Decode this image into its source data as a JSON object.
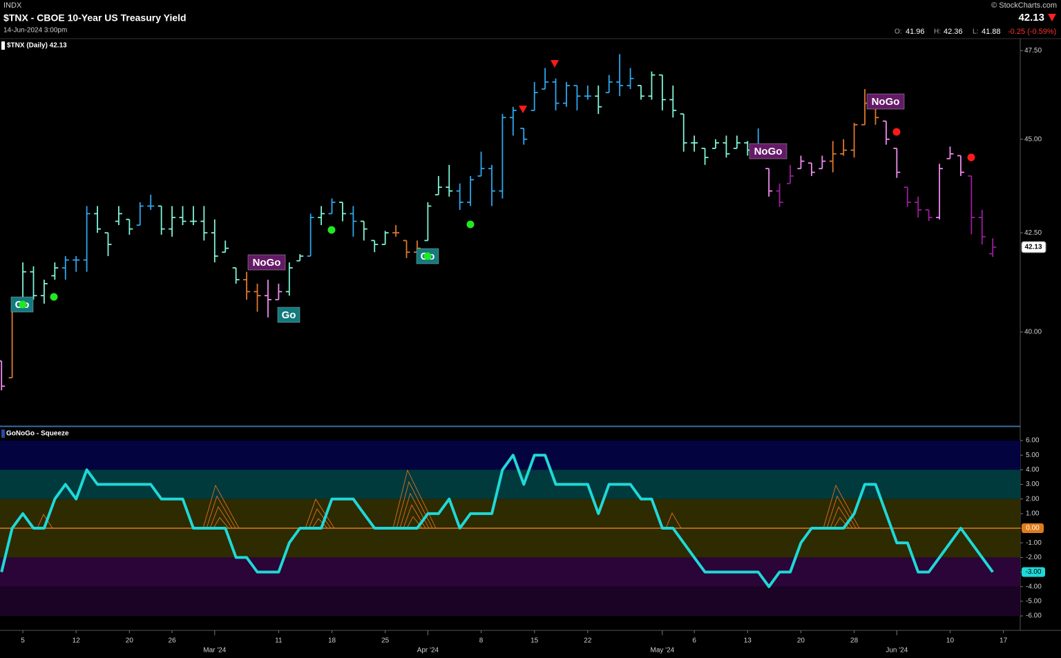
{
  "header": {
    "exchange": "INDX",
    "title": "$TNX - CBOE 10-Year US Treasury Yield",
    "date": "14-Jun-2024 3:00pm",
    "source": "© StockCharts.com",
    "last": 42.13,
    "quote": [
      {
        "label": "O:",
        "value": 41.96
      },
      {
        "label": "H:",
        "value": 42.36
      },
      {
        "label": "L:",
        "value": 41.88
      }
    ],
    "change": "-0.25 (-0.59%)"
  },
  "chart_data": [
    {
      "type": "ohlc",
      "name": "$TNX (Daily) 42.13",
      "log_scale": true,
      "ylim": [
        37.77,
        47.83
      ],
      "yticks": [
        {
          "value": 40,
          "label": "40.00"
        },
        {
          "value": 42.5,
          "label": "42.50"
        },
        {
          "value": 45,
          "label": "45.00"
        },
        {
          "value": 47.5,
          "label": "47.50"
        }
      ],
      "categories": [
        null,
        null,
        "5",
        null,
        null,
        null,
        null,
        "12",
        null,
        null,
        null,
        null,
        "20",
        null,
        null,
        null,
        "26",
        null,
        null,
        null,
        "Mar '24",
        null,
        null,
        null,
        null,
        null,
        "11",
        null,
        null,
        null,
        null,
        "18",
        null,
        null,
        null,
        null,
        "25",
        null,
        null,
        null,
        "Apr '24",
        null,
        null,
        null,
        null,
        "8",
        null,
        null,
        null,
        null,
        "15",
        null,
        null,
        null,
        null,
        "22",
        null,
        null,
        null,
        null,
        null,
        null,
        "May '24",
        null,
        null,
        "6",
        null,
        null,
        null,
        null,
        "13",
        null,
        null,
        null,
        null,
        "20",
        null,
        null,
        null,
        null,
        "28",
        null,
        null,
        null,
        "Jun '24",
        null,
        null,
        null,
        null,
        "10",
        null,
        null,
        null,
        null,
        "17"
      ],
      "open": [
        39.3,
        38.9,
        40.8,
        41.5,
        40.9,
        41.4,
        41.6,
        41.8,
        41.8,
        43.0,
        42.5,
        42.8,
        42.85,
        42.7,
        43.2,
        43.2,
        42.6,
        42.9,
        42.8,
        42.8,
        42.5,
        42.0,
        41.6,
        41.3,
        41.0,
        40.9,
        40.8,
        41.0,
        41.78,
        41.9,
        42.9,
        43.0,
        43.3,
        43.0,
        42.8,
        42.3,
        42.2,
        42.5,
        42.3,
        42.0,
        42.3,
        43.5,
        43.7,
        43.6,
        43.3,
        44.0,
        44.2,
        43.6,
        45.6,
        45.3,
        45.8,
        46.4,
        46.6,
        46.0,
        46.5,
        46.2,
        46.2,
        46.3,
        46.6,
        46.5,
        46.5,
        46.2,
        46.8,
        46.1,
        45.7,
        44.9,
        44.75,
        44.75,
        44.9,
        44.75,
        44.9,
        44.7,
        44.2,
        43.6,
        43.8,
        44.2,
        44.35,
        44.2,
        44.4,
        44.6,
        44.7,
        45.4,
        46.0,
        45.5,
        44.75,
        43.7,
        43.3,
        43.1,
        42.9,
        44.47,
        44.55,
        44.0,
        42.9,
        41.96,
        null
      ],
      "high": [
        39.3,
        40.7,
        41.74,
        41.64,
        41.3,
        41.74,
        41.9,
        41.9,
        43.2,
        43.2,
        42.5,
        43.2,
        42.85,
        43.3,
        43.5,
        43.2,
        43.2,
        43.2,
        43.2,
        43.2,
        42.85,
        42.3,
        41.6,
        41.5,
        41.2,
        41.3,
        41.2,
        41.74,
        41.95,
        43.0,
        43.2,
        43.4,
        43.3,
        43.2,
        42.8,
        42.3,
        42.55,
        42.7,
        42.3,
        42.3,
        43.3,
        44.0,
        44.3,
        43.8,
        44.0,
        44.66,
        44.3,
        45.7,
        45.9,
        45.3,
        46.6,
        47.0,
        46.7,
        46.6,
        46.5,
        46.5,
        46.5,
        46.8,
        47.4,
        47.0,
        46.5,
        46.9,
        46.8,
        46.5,
        45.7,
        45.1,
        44.75,
        45.0,
        45.1,
        45.1,
        44.95,
        45.3,
        44.2,
        43.8,
        44.3,
        44.55,
        44.35,
        44.55,
        44.95,
        45.0,
        45.45,
        46.4,
        46.0,
        45.5,
        44.75,
        43.7,
        43.45,
        43.1,
        44.33,
        44.8,
        44.55,
        44.0,
        43.1,
        42.36,
        null
      ],
      "low": [
        38.6,
        38.9,
        40.7,
        40.8,
        40.7,
        41.3,
        41.3,
        41.5,
        41.5,
        42.5,
        41.9,
        42.7,
        42.45,
        42.7,
        43.1,
        42.45,
        42.4,
        42.7,
        42.7,
        42.3,
        41.74,
        42.0,
        41.2,
        40.8,
        40.5,
        40.36,
        40.8,
        40.9,
        41.78,
        41.9,
        42.7,
        43.0,
        42.8,
        42.4,
        42.3,
        42.0,
        42.2,
        42.4,
        41.85,
        41.9,
        42.3,
        43.5,
        43.45,
        43.1,
        43.2,
        44.0,
        43.2,
        43.4,
        45.1,
        44.85,
        45.8,
        46.4,
        45.8,
        45.9,
        45.8,
        46.1,
        45.7,
        46.3,
        46.2,
        46.4,
        46.1,
        46.1,
        45.8,
        45.6,
        44.66,
        44.66,
        44.3,
        44.75,
        44.5,
        44.75,
        44.55,
        44.5,
        43.45,
        43.18,
        43.8,
        44.2,
        44.0,
        44.2,
        44.1,
        44.55,
        44.5,
        45.4,
        45.4,
        44.85,
        43.95,
        43.18,
        42.9,
        42.81,
        42.85,
        44.47,
        44.0,
        42.46,
        42.2,
        41.88,
        null
      ],
      "close": [
        38.7,
        40.6,
        41.5,
        40.9,
        41.2,
        41.6,
        41.8,
        41.8,
        43.0,
        42.6,
        42.2,
        43.0,
        42.6,
        43.2,
        43.2,
        42.6,
        42.9,
        42.8,
        42.8,
        42.5,
        41.9,
        42.1,
        41.3,
        41.0,
        40.9,
        40.8,
        41.0,
        41.6,
        41.9,
        42.9,
        43.0,
        43.3,
        43.0,
        42.8,
        42.6,
        42.2,
        42.5,
        42.5,
        42.0,
        42.1,
        43.2,
        43.7,
        43.6,
        43.3,
        43.9,
        44.2,
        43.6,
        45.6,
        45.8,
        45.0,
        46.3,
        46.6,
        46.0,
        46.5,
        46.2,
        46.2,
        45.9,
        46.6,
        46.5,
        46.7,
        46.2,
        46.8,
        46.1,
        45.8,
        44.9,
        44.9,
        44.5,
        44.9,
        44.6,
        44.9,
        44.7,
        44.6,
        43.6,
        43.3,
        44.0,
        44.4,
        44.1,
        44.4,
        44.6,
        44.7,
        45.4,
        46.0,
        45.6,
        45.0,
        44.1,
        43.3,
        43.1,
        42.9,
        44.2,
        44.6,
        44.1,
        42.9,
        42.4,
        42.13,
        null
      ],
      "colors": [
        "#f08cf0",
        "#e0782c",
        "#7ff5d8",
        "#7ff5d8",
        "#7ff5d8",
        "#7ff5d8",
        "#2ea8f0",
        "#2ea8f0",
        "#2ea8f0",
        "#7ff5d8",
        "#7ff5d8",
        "#7ff5d8",
        "#7ff5d8",
        "#2ea8f0",
        "#2ea8f0",
        "#7ff5d8",
        "#7ff5d8",
        "#7ff5d8",
        "#7ff5d8",
        "#7ff5d8",
        "#7ff5d8",
        "#7ff5d8",
        "#7ff5d8",
        "#e0782c",
        "#e0782c",
        "#f08cf0",
        "#f08cf0",
        "#7ff5d8",
        "#7ff5d8",
        "#2ea8f0",
        "#7ff5d8",
        "#2ea8f0",
        "#7ff5d8",
        "#2ea8f0",
        "#7ff5d8",
        "#7ff5d8",
        "#7ff5d8",
        "#e0782c",
        "#e0782c",
        "#e0782c",
        "#7ff5d8",
        "#7ff5d8",
        "#7ff5d8",
        "#2ea8f0",
        "#2ea8f0",
        "#2ea8f0",
        "#2ea8f0",
        "#2ea8f0",
        "#2ea8f0",
        "#2ea8f0",
        "#2ea8f0",
        "#2ea8f0",
        "#2ea8f0",
        "#2ea8f0",
        "#2ea8f0",
        "#2ea8f0",
        "#7ff5d8",
        "#2ea8f0",
        "#2ea8f0",
        "#2ea8f0",
        "#7ff5d8",
        "#7ff5d8",
        "#7ff5d8",
        "#7ff5d8",
        "#7ff5d8",
        "#7ff5d8",
        "#7ff5d8",
        "#7ff5d8",
        "#7ff5d8",
        "#7ff5d8",
        "#7ff5d8",
        "#2ea8f0",
        "#f08cf0",
        "#9b1e9b",
        "#9b1e9b",
        "#f08cf0",
        "#f08cf0",
        "#f08cf0",
        "#e0782c",
        "#e0782c",
        "#e0782c",
        "#e0782c",
        "#e0782c",
        "#f08cf0",
        "#f08cf0",
        "#9b1e9b",
        "#9b1e9b",
        "#9b1e9b",
        "#f08cf0",
        "#f08cf0",
        "#f08cf0",
        "#9b1e9b",
        "#9b1e9b",
        "#9b1e9b",
        null
      ],
      "annotations": [
        "Go",
        "NoGo",
        "Go",
        "Go",
        "NoGo",
        "NoGo"
      ]
    },
    {
      "type": "line",
      "name": "GoNoGo - Squeeze",
      "color": "#1fd8d8",
      "ylim": [
        -6.99,
        6.9
      ],
      "yticks": [
        {
          "value": 6,
          "label": "6.00"
        },
        {
          "value": 5,
          "label": "5.00"
        },
        {
          "value": 4,
          "label": "4.00"
        },
        {
          "value": 3,
          "label": "3.00"
        },
        {
          "value": 2,
          "label": "2.00"
        },
        {
          "value": 1,
          "label": "1.00"
        },
        {
          "value": 0,
          "label": "0.00"
        },
        {
          "value": -1,
          "label": "-1.00"
        },
        {
          "value": -2,
          "label": "-2.00"
        },
        {
          "value": -3,
          "label": "-3.00"
        },
        {
          "value": -4,
          "label": "-4.00"
        },
        {
          "value": -5,
          "label": "-5.00"
        },
        {
          "value": -6,
          "label": "-6.00"
        }
      ],
      "values": [
        -3,
        0,
        1,
        0,
        0,
        2,
        3,
        2,
        4,
        3,
        3,
        3,
        3,
        3,
        3,
        2,
        2,
        2,
        0,
        0,
        0,
        0,
        -2,
        -2,
        -3,
        -3,
        -3,
        -1,
        0,
        0,
        0,
        2,
        2,
        2,
        1,
        0,
        0,
        0,
        0,
        0,
        1,
        1,
        2,
        0,
        1,
        1,
        1,
        4,
        5,
        3,
        5,
        5,
        3,
        3,
        3,
        3,
        1,
        3,
        3,
        3,
        2,
        2,
        0,
        0,
        -1,
        -2,
        -3,
        -3,
        -3,
        -3,
        -3,
        -3,
        -4,
        -3,
        -3,
        -1,
        0,
        0,
        0,
        0,
        1,
        3,
        3,
        1,
        -1,
        -1,
        -3,
        -3,
        -2,
        -1,
        0,
        -1,
        -2,
        -3,
        null
      ],
      "last_label": "-3.00"
    }
  ]
}
